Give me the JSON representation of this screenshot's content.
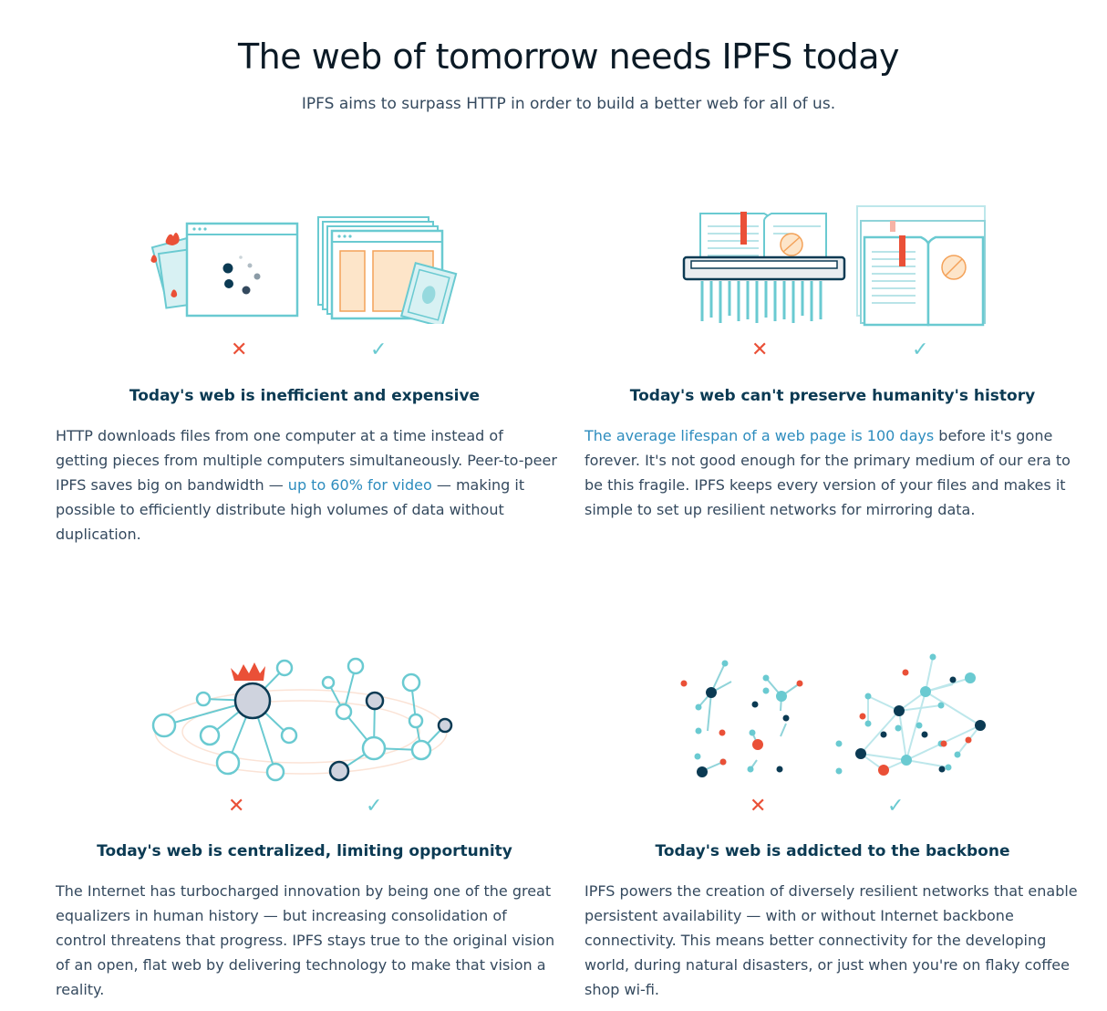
{
  "hero": {
    "title": "The web of tomorrow needs IPFS today",
    "subtitle": "IPFS aims to surpass HTTP in order to build a better web for all of us."
  },
  "colors": {
    "teal": "#6acad1",
    "navy": "#0b3a53",
    "red": "#ea5037",
    "peach": "#fde5c9",
    "orange": "#f4a259"
  },
  "marks": {
    "bad": "✕",
    "good": "✓"
  },
  "cards": [
    {
      "title": "Today's web is inefficient and expensive",
      "body_before": "HTTP downloads files from one computer at a time instead of getting pieces from multiple computers simultaneously. Peer-to-peer IPFS saves big on bandwidth — ",
      "link": "up to 60% for video",
      "body_after": " — making it possible to efficiently distribute high volumes of data without duplication.",
      "icons": [
        "browser-burning-money-icon",
        "browser-with-money-icon"
      ]
    },
    {
      "title": "Today's web can't preserve humanity's history",
      "body_before": "",
      "link": "The average lifespan of a web page is 100 days",
      "body_after": " before it's gone forever. It's not good enough for the primary medium of our era to be this fragile. IPFS keeps every version of your files and makes it simple to set up resilient networks for mirroring data.",
      "icons": [
        "shredded-book-icon",
        "stacked-books-icon"
      ]
    },
    {
      "title": "Today's web is centralized, limiting opportunity",
      "body_before": "The Internet has turbocharged innovation by being one of the great equalizers in human history — but increasing consolidation of control threatens that progress. IPFS stays true to the original vision of an open, flat web by delivering technology to make that vision a reality.",
      "link": "",
      "body_after": "",
      "icons": [
        "centralized-network-icon",
        "distributed-network-icon"
      ]
    },
    {
      "title": "Today's web is addicted to the backbone",
      "body_before": "IPFS powers the creation of diversely resilient networks that enable persistent availability — with or without Internet backbone connectivity. This means better connectivity for the developing world, during natural disasters, or just when you're on flaky coffee shop wi-fi.",
      "link": "",
      "body_after": "",
      "icons": [
        "scattered-nodes-icon",
        "meshed-nodes-icon"
      ]
    }
  ]
}
